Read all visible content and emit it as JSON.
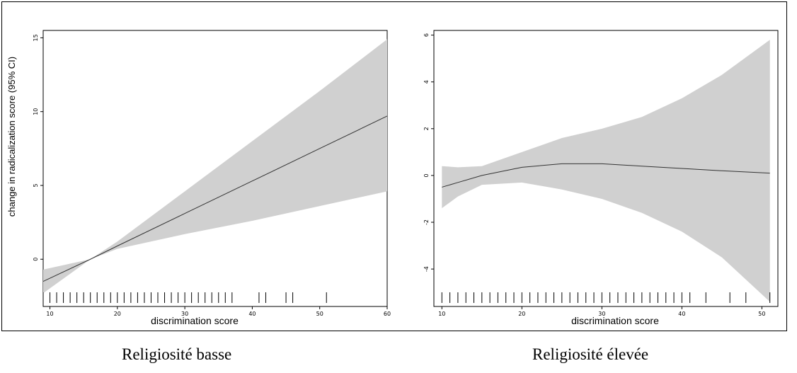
{
  "captions": {
    "left": "Religiosité basse",
    "right": "Religiosité élevée"
  },
  "colors": {
    "ci_band": "#d0d0d0",
    "line": "#333333"
  },
  "chart_data": [
    {
      "type": "line",
      "title": "",
      "xlabel": "discrimination score",
      "ylabel": "change in radicalization score (95% CI)",
      "xlim": [
        9,
        60
      ],
      "ylim": [
        -3.2,
        15.5
      ],
      "x_ticks": [
        10,
        20,
        30,
        40,
        50,
        60
      ],
      "y_ticks": [
        0,
        5,
        10,
        15
      ],
      "series": [
        {
          "name": "",
          "x": [
            9,
            16,
            20,
            30,
            40,
            50,
            60
          ],
          "y": [
            -1.5,
            0,
            0.9,
            3.1,
            5.3,
            7.5,
            9.7
          ],
          "lower": [
            -2.3,
            0,
            0.7,
            1.7,
            2.6,
            3.6,
            4.6
          ],
          "upper": [
            -0.7,
            0,
            1.2,
            4.6,
            8.0,
            11.4,
            14.9
          ]
        }
      ],
      "rug": [
        9,
        10,
        11,
        12,
        13,
        14,
        15,
        16,
        17,
        18,
        19,
        20,
        21,
        22,
        23,
        24,
        25,
        26,
        27,
        28,
        29,
        30,
        31,
        32,
        33,
        34,
        35,
        36,
        37,
        41,
        42,
        45,
        46,
        51
      ]
    },
    {
      "type": "line",
      "title": "",
      "xlabel": "discrimination score",
      "ylabel": "",
      "xlim": [
        9,
        52
      ],
      "ylim": [
        -5.6,
        6.2
      ],
      "x_ticks": [
        10,
        20,
        30,
        40,
        50
      ],
      "y_ticks": [
        -4,
        -2,
        0,
        2,
        4,
        6
      ],
      "series": [
        {
          "name": "",
          "x": [
            10,
            12,
            15,
            20,
            25,
            30,
            35,
            40,
            45,
            51
          ],
          "y": [
            -0.5,
            -0.3,
            0.0,
            0.35,
            0.5,
            0.5,
            0.4,
            0.3,
            0.2,
            0.1
          ],
          "lower": [
            -1.4,
            -0.9,
            -0.4,
            -0.3,
            -0.6,
            -1.0,
            -1.6,
            -2.4,
            -3.5,
            -5.4
          ],
          "upper": [
            0.4,
            0.35,
            0.4,
            1.0,
            1.6,
            2.0,
            2.5,
            3.3,
            4.3,
            5.8
          ]
        }
      ],
      "rug": [
        10,
        11,
        12,
        13,
        14,
        15,
        16,
        17,
        18,
        19,
        20,
        21,
        22,
        23,
        24,
        25,
        26,
        27,
        28,
        29,
        30,
        31,
        32,
        33,
        34,
        35,
        36,
        37,
        38,
        39,
        40,
        41,
        43,
        46,
        48,
        51
      ]
    }
  ]
}
